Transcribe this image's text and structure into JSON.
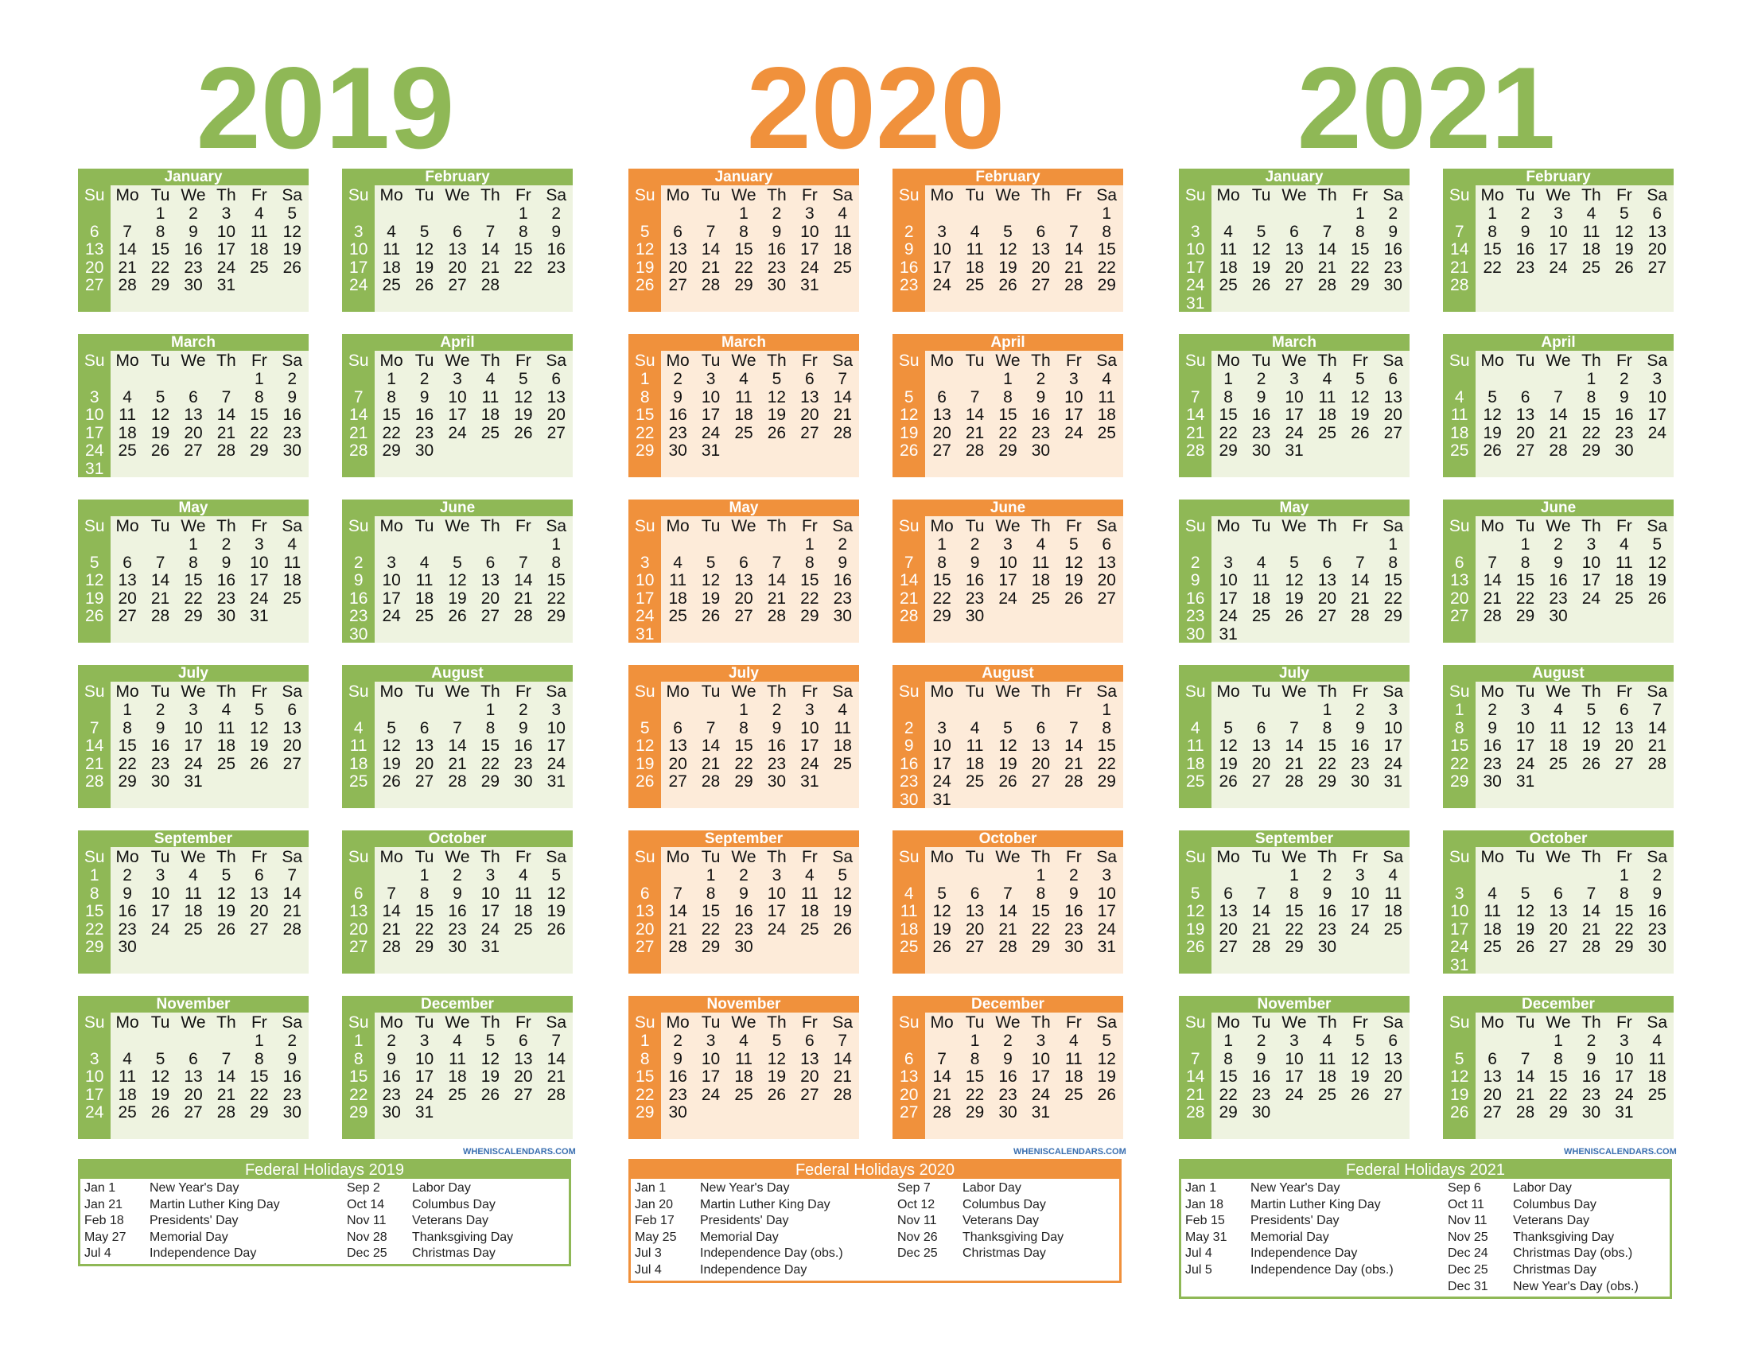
{
  "years": [
    {
      "year": "2019",
      "theme": "green",
      "months": [
        {
          "name": "January",
          "start": 2,
          "days": 31
        },
        {
          "name": "February",
          "start": 5,
          "days": 28
        },
        {
          "name": "March",
          "start": 5,
          "days": 31
        },
        {
          "name": "April",
          "start": 1,
          "days": 30
        },
        {
          "name": "May",
          "start": 3,
          "days": 31
        },
        {
          "name": "June",
          "start": 6,
          "days": 30
        },
        {
          "name": "July",
          "start": 1,
          "days": 31
        },
        {
          "name": "August",
          "start": 4,
          "days": 31
        },
        {
          "name": "September",
          "start": 0,
          "days": 30
        },
        {
          "name": "October",
          "start": 2,
          "days": 31
        },
        {
          "name": "November",
          "start": 5,
          "days": 30
        },
        {
          "name": "December",
          "start": 0,
          "days": 31
        }
      ],
      "holidays_title": "Federal Holidays 2019",
      "holidays_left": [
        {
          "date": "Jan 1",
          "name": "New Year's Day"
        },
        {
          "date": "Jan 21",
          "name": "Martin Luther King Day"
        },
        {
          "date": "Feb 18",
          "name": "Presidents' Day"
        },
        {
          "date": "May 27",
          "name": "Memorial Day"
        },
        {
          "date": "Jul 4",
          "name": "Independence Day"
        }
      ],
      "holidays_right": [
        {
          "date": "Sep 2",
          "name": "Labor Day"
        },
        {
          "date": "Oct 14",
          "name": "Columbus Day"
        },
        {
          "date": "Nov 11",
          "name": "Veterans Day"
        },
        {
          "date": "Nov 28",
          "name": "Thanksgiving Day"
        },
        {
          "date": "Dec 25",
          "name": "Christmas Day"
        }
      ]
    },
    {
      "year": "2020",
      "theme": "orange",
      "months": [
        {
          "name": "January",
          "start": 3,
          "days": 31
        },
        {
          "name": "February",
          "start": 6,
          "days": 29
        },
        {
          "name": "March",
          "start": 0,
          "days": 31
        },
        {
          "name": "April",
          "start": 3,
          "days": 30
        },
        {
          "name": "May",
          "start": 5,
          "days": 31
        },
        {
          "name": "June",
          "start": 1,
          "days": 30
        },
        {
          "name": "July",
          "start": 3,
          "days": 31
        },
        {
          "name": "August",
          "start": 6,
          "days": 31
        },
        {
          "name": "September",
          "start": 2,
          "days": 30
        },
        {
          "name": "October",
          "start": 4,
          "days": 31
        },
        {
          "name": "November",
          "start": 0,
          "days": 30
        },
        {
          "name": "December",
          "start": 2,
          "days": 31
        }
      ],
      "holidays_title": "Federal Holidays 2020",
      "holidays_left": [
        {
          "date": "Jan 1",
          "name": "New Year's Day"
        },
        {
          "date": "Jan 20",
          "name": "Martin Luther King Day"
        },
        {
          "date": "Feb 17",
          "name": "Presidents' Day"
        },
        {
          "date": "May 25",
          "name": "Memorial Day"
        },
        {
          "date": "Jul 3",
          "name": "Independence Day (obs.)"
        },
        {
          "date": "Jul 4",
          "name": "Independence Day"
        }
      ],
      "holidays_right": [
        {
          "date": "Sep 7",
          "name": "Labor Day"
        },
        {
          "date": "Oct 12",
          "name": "Columbus Day"
        },
        {
          "date": "Nov 11",
          "name": "Veterans Day"
        },
        {
          "date": "Nov 26",
          "name": "Thanksgiving Day"
        },
        {
          "date": "Dec 25",
          "name": "Christmas Day"
        }
      ]
    },
    {
      "year": "2021",
      "theme": "green",
      "months": [
        {
          "name": "January",
          "start": 5,
          "days": 31
        },
        {
          "name": "February",
          "start": 1,
          "days": 28
        },
        {
          "name": "March",
          "start": 1,
          "days": 31
        },
        {
          "name": "April",
          "start": 4,
          "days": 30
        },
        {
          "name": "May",
          "start": 6,
          "days": 31
        },
        {
          "name": "June",
          "start": 2,
          "days": 30
        },
        {
          "name": "July",
          "start": 4,
          "days": 31
        },
        {
          "name": "August",
          "start": 0,
          "days": 31
        },
        {
          "name": "September",
          "start": 3,
          "days": 30
        },
        {
          "name": "October",
          "start": 5,
          "days": 31
        },
        {
          "name": "November",
          "start": 1,
          "days": 30
        },
        {
          "name": "December",
          "start": 3,
          "days": 31
        }
      ],
      "holidays_title": "Federal Holidays 2021",
      "holidays_left": [
        {
          "date": "Jan 1",
          "name": "New Year's Day"
        },
        {
          "date": "Jan 18",
          "name": "Martin Luther King Day"
        },
        {
          "date": "Feb 15",
          "name": "Presidents' Day"
        },
        {
          "date": "May 31",
          "name": "Memorial Day"
        },
        {
          "date": "Jul 4",
          "name": "Independence Day"
        },
        {
          "date": "Jul 5",
          "name": "Independence Day (obs.)"
        }
      ],
      "holidays_right": [
        {
          "date": "Sep 6",
          "name": "Labor Day"
        },
        {
          "date": "Oct 11",
          "name": "Columbus Day"
        },
        {
          "date": "Nov 11",
          "name": "Veterans Day"
        },
        {
          "date": "Nov 25",
          "name": "Thanksgiving Day"
        },
        {
          "date": "Dec 24",
          "name": "Christmas Day (obs.)"
        },
        {
          "date": "Dec 25",
          "name": "Christmas Day"
        },
        {
          "date": "Dec 31",
          "name": "New Year's Day (obs.)"
        }
      ]
    }
  ],
  "weekdays": [
    "Su",
    "Mo",
    "Tu",
    "We",
    "Th",
    "Fr",
    "Sa"
  ],
  "watermark": "WHENISCALENDARS.COM",
  "colors": {
    "green": {
      "main": "#8fb856",
      "light": "#eef3e0",
      "title": "#8fb856"
    },
    "orange": {
      "main": "#f0913c",
      "light": "#fdebd9",
      "title": "#f0913c"
    }
  }
}
